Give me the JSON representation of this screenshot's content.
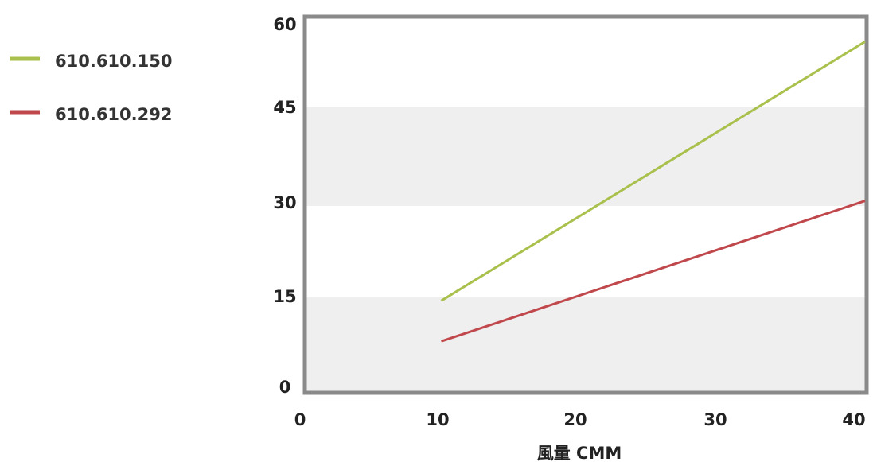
{
  "chart_data": {
    "type": "line",
    "title": "",
    "xlabel": "風量  CMM",
    "ylabel": "",
    "xlim": [
      0,
      40
    ],
    "ylim": [
      0,
      60
    ],
    "x_ticks": [
      "0",
      "10",
      "20",
      "30",
      "40"
    ],
    "y_ticks": [
      "0",
      "15",
      "30",
      "45",
      "60"
    ],
    "grid": "alternating horizontal bands",
    "legend_position": "left",
    "series": [
      {
        "name": "610.610.150",
        "color": "#a9c14c",
        "x": [
          10,
          40
        ],
        "y": [
          14.5,
          56
        ]
      },
      {
        "name": "610.610.292",
        "color": "#c0474b",
        "x": [
          10,
          40
        ],
        "y": [
          8,
          30.5
        ]
      }
    ]
  }
}
